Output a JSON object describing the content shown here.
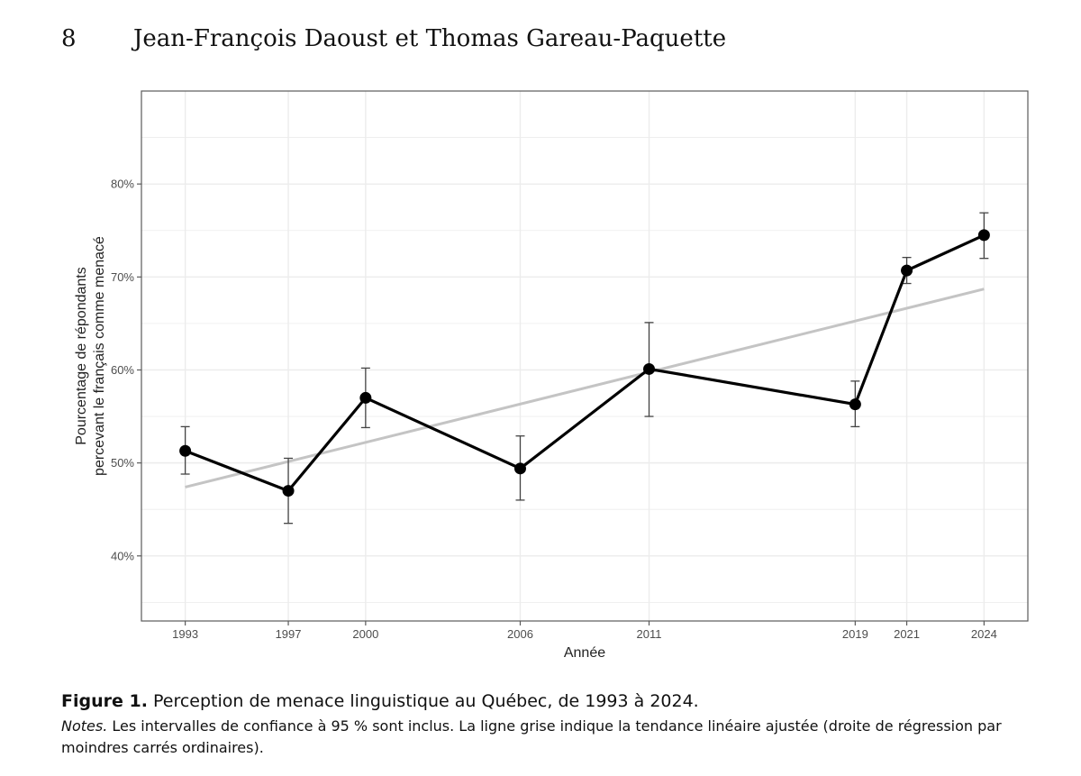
{
  "header": {
    "page_number": "8",
    "authors": "Jean-François Daoust et Thomas Gareau-Paquette"
  },
  "chart_data": {
    "type": "line",
    "xlabel": "Année",
    "ylabel_lines": [
      "Pourcentage de répondants",
      "percevant le français comme menacé"
    ],
    "x": [
      1993,
      1997,
      2000,
      2006,
      2011,
      2019,
      2021,
      2024
    ],
    "x_tick_labels": [
      "1993",
      "1997",
      "2000",
      "2006",
      "2011",
      "2019",
      "2021",
      "2024"
    ],
    "series": [
      {
        "values": [
          51.3,
          47.0,
          57.0,
          49.4,
          60.1,
          56.3,
          70.7,
          74.5
        ],
        "ci_low": [
          48.8,
          43.5,
          53.8,
          46.0,
          55.0,
          53.9,
          69.3,
          72.0
        ],
        "ci_high": [
          53.9,
          50.5,
          60.2,
          52.9,
          65.1,
          58.8,
          72.1,
          76.9
        ],
        "color": "#000000"
      }
    ],
    "trend_line": {
      "x": [
        1993,
        2024
      ],
      "y": [
        47.4,
        68.7
      ],
      "color": "#c4c4c4"
    },
    "ylim": [
      33,
      90
    ],
    "xlim": [
      1991.3,
      2025.7
    ],
    "y_ticks": [
      40,
      50,
      60,
      70,
      80
    ],
    "y_tick_labels": [
      "40%",
      "50%",
      "60%",
      "70%",
      "80%"
    ],
    "grid": true,
    "grid_color": "#ececec",
    "legend": "none"
  },
  "caption": {
    "figure_label": "Figure 1.",
    "figure_title": "Perception de menace linguistique au Québec, de 1993 à 2024.",
    "notes_label": "Notes.",
    "notes_text": "Les intervalles de confiance à 95 % sont inclus. La ligne grise indique la tendance linéaire ajustée (droite de régression par moindres carrés ordinaires)."
  }
}
